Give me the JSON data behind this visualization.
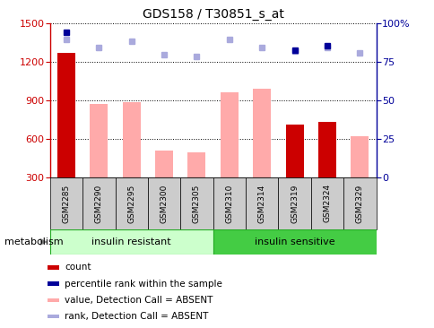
{
  "title": "GDS158 / T30851_s_at",
  "samples": [
    "GSM2285",
    "GSM2290",
    "GSM2295",
    "GSM2300",
    "GSM2305",
    "GSM2310",
    "GSM2314",
    "GSM2319",
    "GSM2324",
    "GSM2329"
  ],
  "groups": {
    "insulin resistant": [
      0,
      1,
      2,
      3,
      4
    ],
    "insulin sensitive": [
      5,
      6,
      7,
      8,
      9
    ]
  },
  "count_bars": [
    1270,
    0,
    0,
    0,
    0,
    0,
    0,
    710,
    730,
    0
  ],
  "value_absent_bars": [
    0,
    870,
    880,
    510,
    490,
    960,
    990,
    0,
    0,
    620
  ],
  "rank_absent_markers": [
    1370,
    1310,
    1360,
    1250,
    1240,
    1370,
    1310,
    1280,
    1310,
    1270
  ],
  "percentile_rank_markers": [
    1430,
    0,
    0,
    0,
    0,
    0,
    0,
    1285,
    1325,
    0
  ],
  "ylim": [
    300,
    1500
  ],
  "y2lim": [
    0,
    100
  ],
  "yticks": [
    300,
    600,
    900,
    1200,
    1500
  ],
  "y2ticks": [
    0,
    25,
    50,
    75,
    100
  ],
  "count_color": "#cc0000",
  "value_absent_color": "#ffaaaa",
  "rank_absent_color": "#aaaadd",
  "percentile_rank_color": "#000099",
  "group_bg_resistant": "#ccffcc",
  "group_bg_sensitive": "#44cc44",
  "group_border": "#22aa22",
  "sample_bg": "#cccccc",
  "legend_items": [
    {
      "label": "count",
      "color": "#cc0000"
    },
    {
      "label": "percentile rank within the sample",
      "color": "#000099"
    },
    {
      "label": "value, Detection Call = ABSENT",
      "color": "#ffaaaa"
    },
    {
      "label": "rank, Detection Call = ABSENT",
      "color": "#aaaadd"
    }
  ],
  "metabolism_label": "metabolism",
  "group_labels": [
    "insulin resistant",
    "insulin sensitive"
  ]
}
